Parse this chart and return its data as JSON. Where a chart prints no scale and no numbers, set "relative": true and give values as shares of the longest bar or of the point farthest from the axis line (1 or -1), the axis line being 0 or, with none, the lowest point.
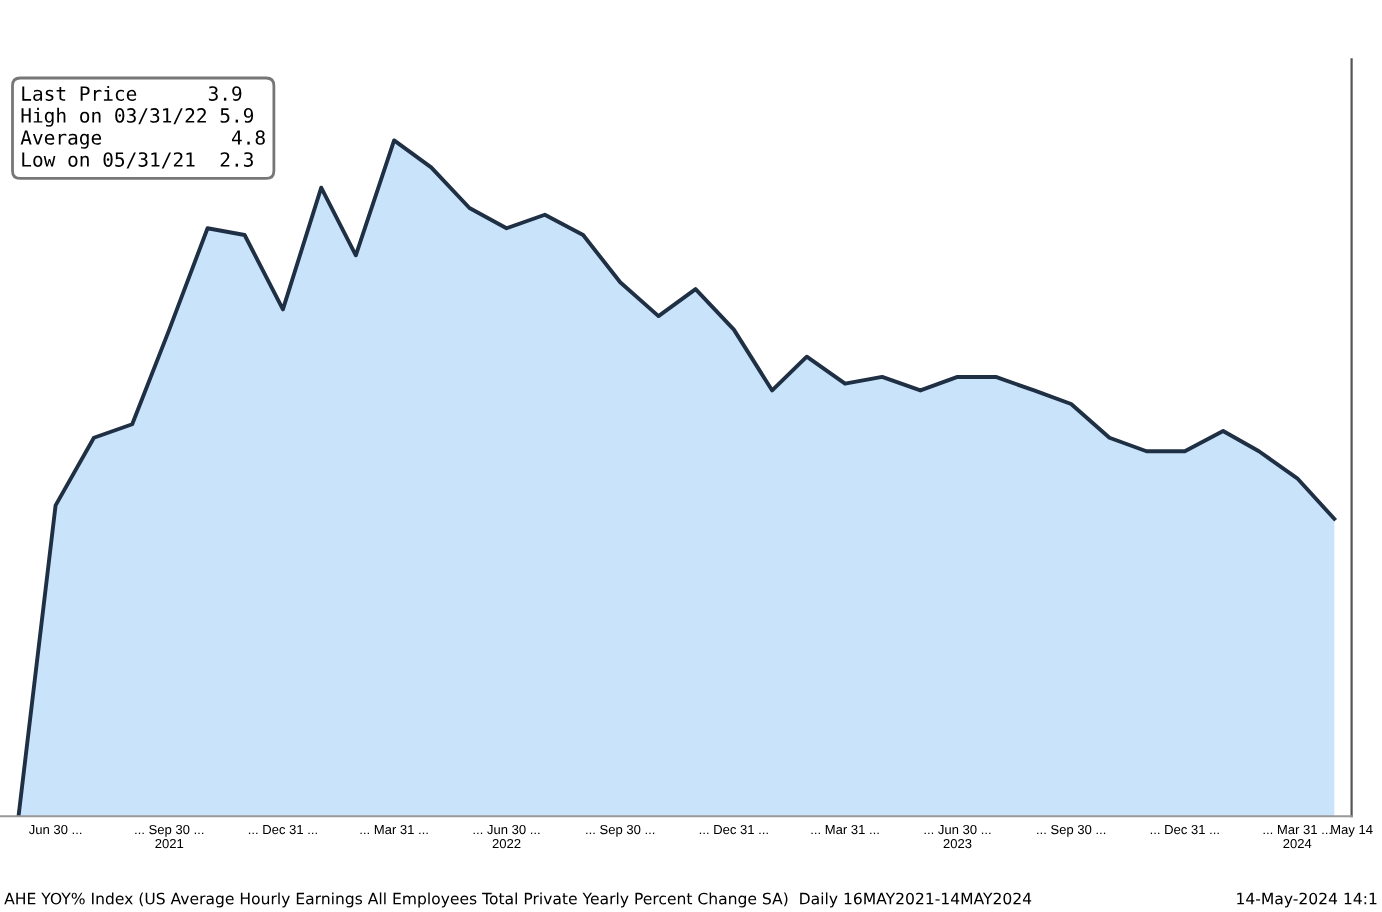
{
  "chart_data": {
    "type": "area",
    "x": [
      "2021-05-31",
      "2021-06-30",
      "2021-07-31",
      "2021-08-31",
      "2021-09-30",
      "2021-10-31",
      "2021-11-30",
      "2021-12-31",
      "2022-01-31",
      "2022-02-28",
      "2022-03-31",
      "2022-04-30",
      "2022-05-31",
      "2022-06-30",
      "2022-07-31",
      "2022-08-31",
      "2022-09-30",
      "2022-10-31",
      "2022-11-30",
      "2022-12-31",
      "2023-01-31",
      "2023-02-28",
      "2023-03-31",
      "2023-04-30",
      "2023-05-31",
      "2023-06-30",
      "2023-07-31",
      "2023-08-31",
      "2023-09-30",
      "2023-10-31",
      "2023-11-30",
      "2023-12-31",
      "2024-01-31",
      "2024-02-29",
      "2024-03-31",
      "2024-04-30"
    ],
    "series": [
      {
        "color": "#c9e3fb",
        "values": [
          0,
          0.46,
          0.56,
          0.58,
          0.72,
          0.87,
          0.86,
          0.75,
          0.93,
          0.83,
          1,
          0.96,
          0.9,
          0.87,
          0.89,
          0.86,
          0.79,
          0.74,
          0.78,
          0.72,
          0.63,
          0.68,
          0.64,
          0.65,
          0.63,
          0.65,
          0.65,
          0.63,
          0.61,
          0.56,
          0.54,
          0.54,
          0.57,
          0.54,
          0.5,
          0.44
        ]
      }
    ],
    "relative": true,
    "xlim": [
      "2021-05-16",
      "2024-05-14"
    ],
    "xticks": [
      {
        "value": "2021-06-30",
        "label": "Jun 30 ..."
      },
      {
        "value": "2021-09-30",
        "label": "... Sep 30 ...\n2021"
      },
      {
        "value": "2021-12-31",
        "label": "... Dec 31 ..."
      },
      {
        "value": "2022-03-31",
        "label": "... Mar 31 ..."
      },
      {
        "value": "2022-06-30",
        "label": "... Jun 30 ...\n2022"
      },
      {
        "value": "2022-09-30",
        "label": "... Sep 30 ..."
      },
      {
        "value": "2022-12-31",
        "label": "... Dec 31 ..."
      },
      {
        "value": "2023-03-31",
        "label": "... Mar 31 ..."
      },
      {
        "value": "2023-06-30",
        "label": "... Jun 30 ...\n2023"
      },
      {
        "value": "2023-09-30",
        "label": "... Sep 30 ..."
      },
      {
        "value": "2023-12-31",
        "label": "... Dec 31 ..."
      },
      {
        "value": "2024-03-31",
        "label": "... Mar 31 ...\n2024"
      },
      {
        "value": "2024-05-14",
        "label": "May 14"
      }
    ],
    "tick_labels": "x",
    "grid": false,
    "legend": false,
    "annotations": [
      "Last Price      3.9",
      "High on 03/31/22 5.9",
      "Average           4.8",
      "Low on 05/31/21  2.3",
      "AHE YOY% Index (US Average Hourly Earnings All Employees Total Private Yearly Percent Change SA)  Daily 16MAY2021-14MAY2024",
      "14-May-2024 14:1"
    ]
  }
}
